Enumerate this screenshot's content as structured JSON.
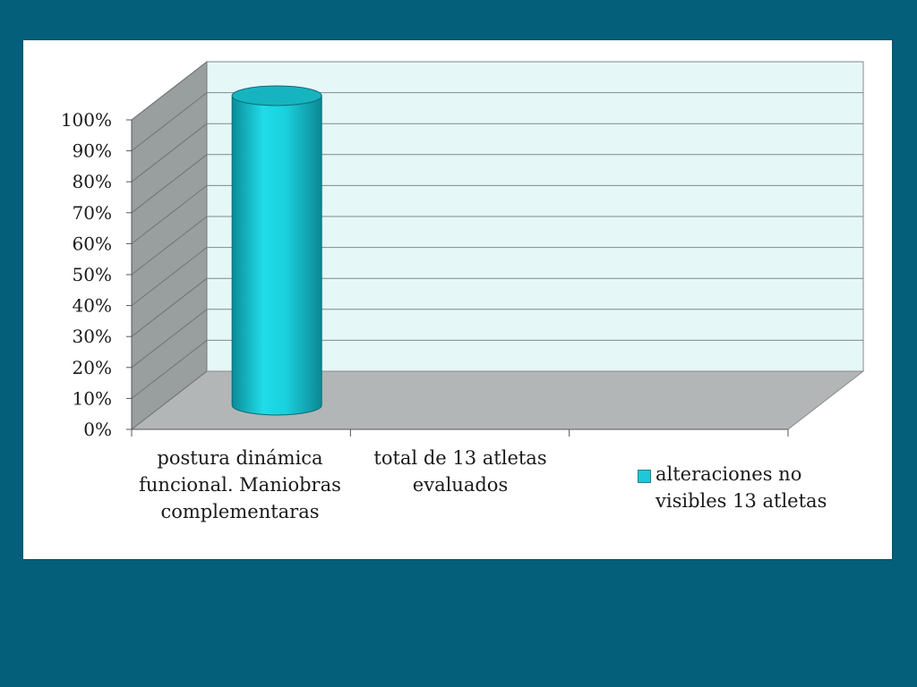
{
  "chart_data": {
    "type": "bar",
    "style": "3d-cylinder",
    "categories": [
      "postura dinámica funcional. Maniobras complementaras",
      "total de 13 atletas evaluados",
      ""
    ],
    "series": [
      {
        "name": "alteraciones no visibles 13 atletas",
        "values": [
          100,
          null,
          null
        ],
        "color": "#1ec8d8"
      }
    ],
    "ylim": [
      0,
      100
    ],
    "yticks": [
      "0%",
      "10%",
      "20%",
      "30%",
      "40%",
      "50%",
      "60%",
      "70%",
      "80%",
      "90%",
      "100%"
    ],
    "grid": true,
    "legend_position": "right"
  },
  "colors": {
    "background": "#04607a",
    "panel": "#ffffff",
    "back_wall": "#e6f7f8",
    "side_wall": "#999e9f",
    "floor": "#b3b6b6",
    "cylinder": "#1ec8d8"
  }
}
